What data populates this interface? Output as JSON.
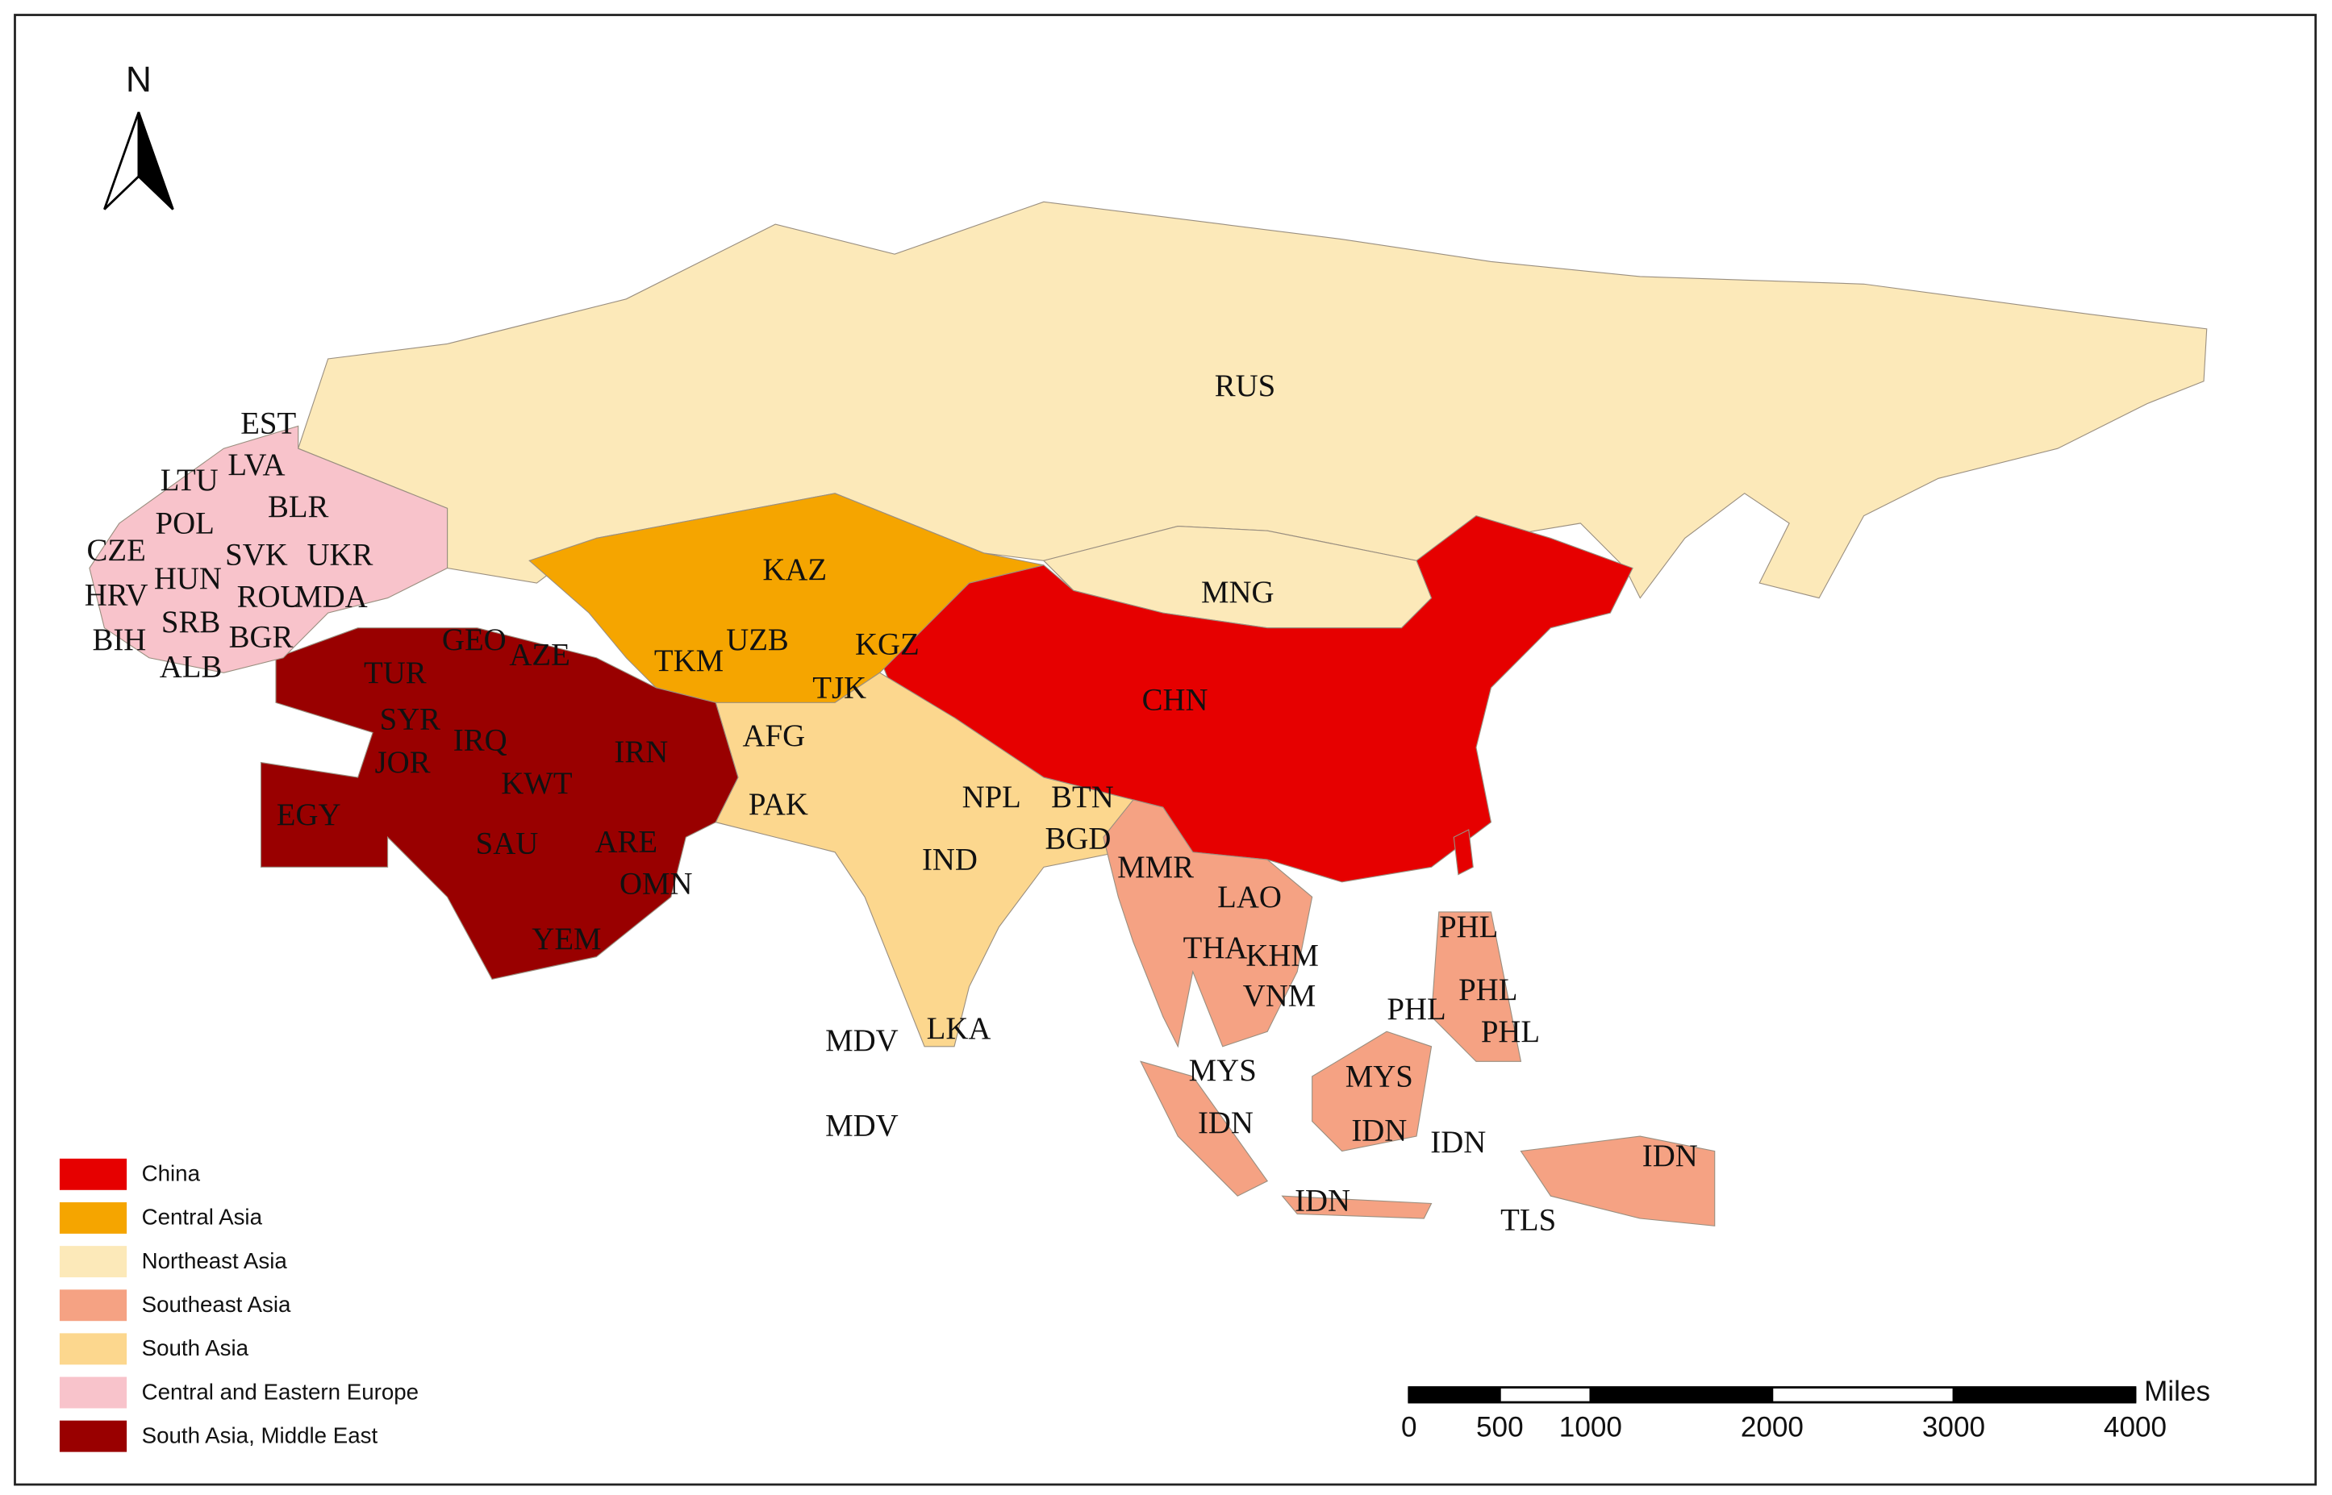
{
  "north_arrow": "N",
  "labels": [
    "EST",
    "LVA",
    "LTU",
    "BLR",
    "POL",
    "CZE",
    "SVK",
    "UKR",
    "HUN",
    "HRV",
    "ROU",
    "MDA",
    "SRB",
    "BIH",
    "BGR",
    "ALB",
    "GEO",
    "AZE",
    "TUR",
    "SYR",
    "IRQ",
    "JOR",
    "IRN",
    "KWT",
    "EGY",
    "SAU",
    "ARE",
    "OMN",
    "YEM",
    "KAZ",
    "TKM",
    "UZB",
    "KGZ",
    "TJK",
    "AFG",
    "PAK",
    "NPL",
    "BTN",
    "BGD",
    "IND",
    "MDV",
    "MDV",
    "LKA",
    "RUS",
    "MNG",
    "CHN",
    "MMR",
    "LAO",
    "THA",
    "KHM",
    "VNM",
    "PHL",
    "PHL",
    "PHL",
    "PHL",
    "MYS",
    "MYS",
    "IDN",
    "IDN",
    "IDN",
    "IDN",
    "IDN",
    "TLS"
  ],
  "legend": {
    "items": [
      {
        "name": "China",
        "color": "#e60000"
      },
      {
        "name": "Central Asia",
        "color": "#f5a500"
      },
      {
        "name": "Northeast Asia",
        "color": "#fce9b9"
      },
      {
        "name": "Southeast Asia",
        "color": "#f5a283"
      },
      {
        "name": "South Asia",
        "color": "#fcd78e"
      },
      {
        "name": "Central and Eastern Europe",
        "color": "#f8c3cb"
      },
      {
        "name": "South Asia, Middle East",
        "color": "#990000"
      }
    ]
  },
  "scale_bar": {
    "ticks": [
      0,
      500,
      1000,
      2000,
      3000,
      4000
    ],
    "range": [
      0,
      4000
    ],
    "unit": "Miles"
  }
}
